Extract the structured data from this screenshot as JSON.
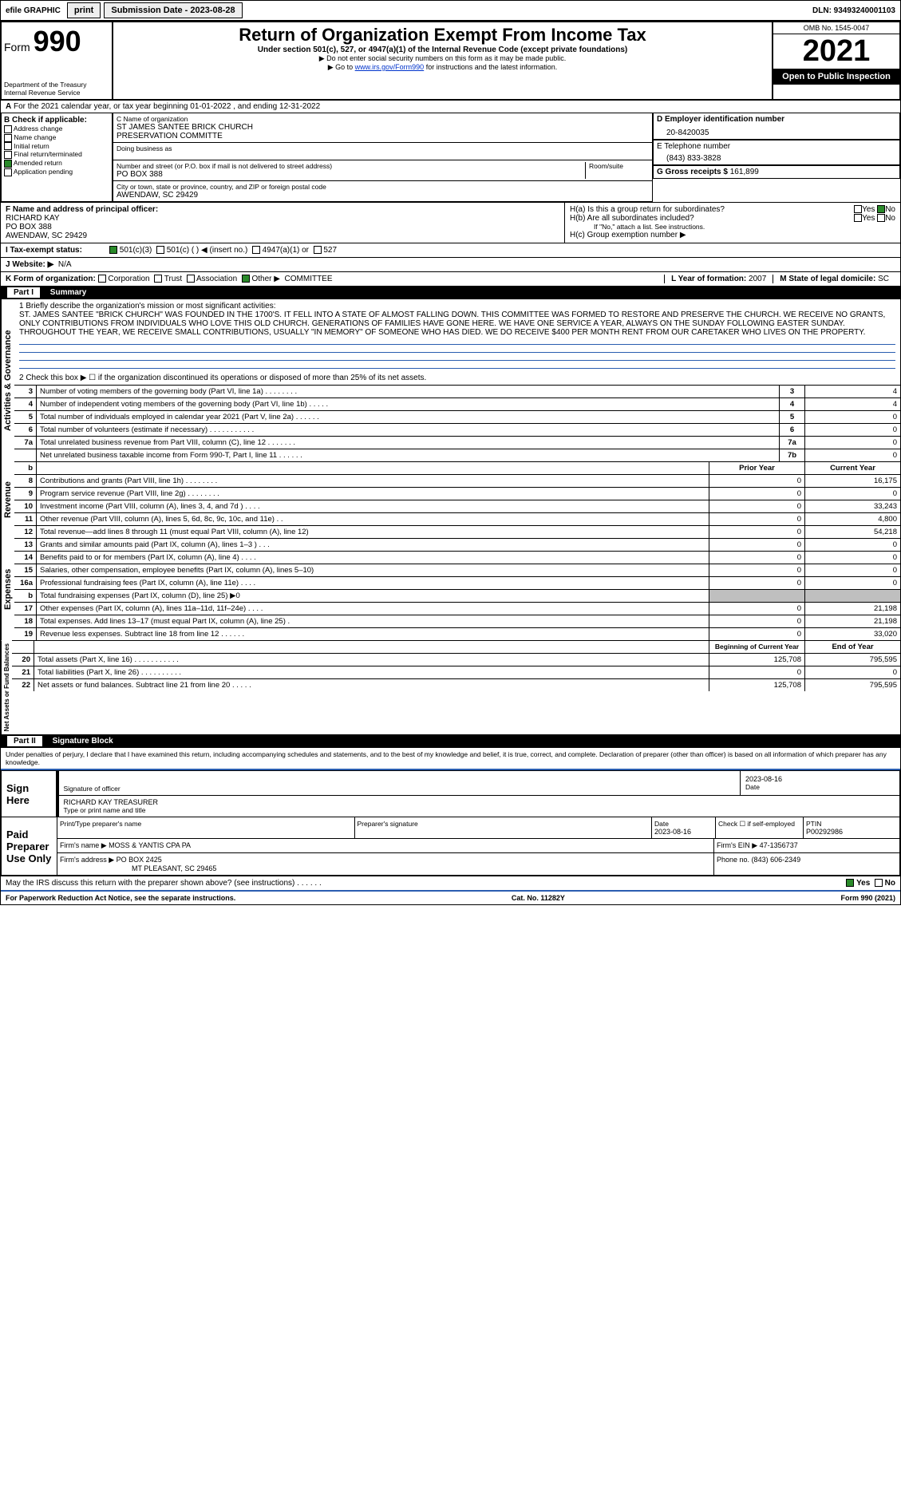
{
  "topbar": {
    "efile": "efile GRAPHIC",
    "print": "print",
    "sub_label": "Submission Date - 2023-08-28",
    "dln": "DLN: 93493240001103"
  },
  "header": {
    "form_word": "Form",
    "form_num": "990",
    "dept": "Department of the Treasury",
    "irs": "Internal Revenue Service",
    "title": "Return of Organization Exempt From Income Tax",
    "subtitle": "Under section 501(c), 527, or 4947(a)(1) of the Internal Revenue Code (except private foundations)",
    "note1": "▶ Do not enter social security numbers on this form as it may be made public.",
    "note2_pre": "▶ Go to ",
    "note2_link": "www.irs.gov/Form990",
    "note2_post": " for instructions and the latest information.",
    "omb": "OMB No. 1545-0047",
    "year": "2021",
    "open": "Open to Public Inspection"
  },
  "lineA": "For the 2021 calendar year, or tax year beginning 01-01-2022   , and ending 12-31-2022",
  "checkB": {
    "label": "B Check if applicable:",
    "items": [
      "Address change",
      "Name change",
      "Initial return",
      "Final return/terminated",
      "Amended return",
      "Application pending"
    ],
    "checked_index": 4
  },
  "org": {
    "c_label": "C Name of organization",
    "name1": "ST JAMES SANTEE BRICK CHURCH",
    "name2": "PRESERVATION COMMITTE",
    "dba_label": "Doing business as",
    "street_label": "Number and street (or P.O. box if mail is not delivered to street address)",
    "room_label": "Room/suite",
    "street": "PO BOX 388",
    "city_label": "City or town, state or province, country, and ZIP or foreign postal code",
    "city": "AWENDAW, SC  29429"
  },
  "right": {
    "d_label": "D Employer identification number",
    "ein": "20-8420035",
    "e_label": "E Telephone number",
    "phone": "(843) 833-3828",
    "g_label": "G Gross receipts $",
    "gross": "161,899"
  },
  "f": {
    "label": "F  Name and address of principal officer:",
    "name": "RICHARD KAY",
    "addr1": "PO BOX 388",
    "addr2": "AWENDAW, SC  29429"
  },
  "h": {
    "a": "H(a)  Is this a group return for subordinates?",
    "a_yes": "Yes",
    "a_no": "No",
    "b": "H(b)  Are all subordinates included?",
    "b_yes": "Yes",
    "b_no": "No",
    "b_note": "If \"No,\" attach a list. See instructions.",
    "c": "H(c)  Group exemption number ▶"
  },
  "i": {
    "label": "I   Tax-exempt status:",
    "o1": "501(c)(3)",
    "o2": "501(c) (  )  ◀ (insert no.)",
    "o3": "4947(a)(1) or",
    "o4": "527"
  },
  "j": {
    "label": "J   Website: ▶",
    "val": "N/A"
  },
  "k": {
    "label": "K Form of organization:",
    "opts": [
      "Corporation",
      "Trust",
      "Association",
      "Other ▶"
    ],
    "other_val": "COMMITTEE"
  },
  "l": {
    "label": "L Year of formation:",
    "val": "2007"
  },
  "m": {
    "label": "M State of legal domicile:",
    "val": "SC"
  },
  "part1": {
    "bar": "Part I",
    "title": "Summary"
  },
  "summary": {
    "q1_label": "1   Briefly describe the organization's mission or most significant activities:",
    "q1_text": "ST. JAMES SANTEE \"BRICK CHURCH\" WAS FOUNDED IN THE 1700'S. IT FELL INTO A STATE OF ALMOST FALLING DOWN. THIS COMMITTEE WAS FORMED TO RESTORE AND PRESERVE THE CHURCH. WE RECEIVE NO GRANTS, ONLY CONTRIBUTIONS FROM INDIVIDUALS WHO LOVE THIS OLD CHURCH. GENERATIONS OF FAMILIES HAVE GONE HERE. WE HAVE ONE SERVICE A YEAR, ALWAYS ON THE SUNDAY FOLLOWING EASTER SUNDAY. THROUGHOUT THE YEAR, WE RECEIVE SMALL CONTRIBUTIONS, USUALLY \"IN MEMORY\" OF SOMEONE WHO HAS DIED. WE DO RECEIVE $400 PER MONTH RENT FROM OUR CARETAKER WHO LIVES ON THE PROPERTY.",
    "q2": "2   Check this box ▶ ☐ if the organization discontinued its operations or disposed of more than 25% of its net assets.",
    "rows_gov": [
      {
        "n": "3",
        "d": "Number of voting members of the governing body (Part VI, line 1a)   .    .    .    .    .    .    .    .",
        "t": "3",
        "v": "4"
      },
      {
        "n": "4",
        "d": "Number of independent voting members of the governing body (Part VI, line 1b)   .    .    .    .    .",
        "t": "4",
        "v": "4"
      },
      {
        "n": "5",
        "d": "Total number of individuals employed in calendar year 2021 (Part V, line 2a)   .    .    .    .    .    .",
        "t": "5",
        "v": "0"
      },
      {
        "n": "6",
        "d": "Total number of volunteers (estimate if necessary)   .    .    .    .    .    .    .    .    .    .    .",
        "t": "6",
        "v": "0"
      },
      {
        "n": "7a",
        "d": "Total unrelated business revenue from Part VIII, column (C), line 12   .    .    .    .    .    .    .",
        "t": "7a",
        "v": "0"
      },
      {
        "n": "",
        "d": "Net unrelated business taxable income from Form 990-T, Part I, line 11   .    .    .    .    .    .",
        "t": "7b",
        "v": "0"
      }
    ],
    "col_prior": "Prior Year",
    "col_current": "Current Year",
    "rows_rev": [
      {
        "n": "8",
        "d": "Contributions and grants (Part VIII, line 1h)   .    .    .    .    .    .    .    .",
        "p": "0",
        "c": "16,175"
      },
      {
        "n": "9",
        "d": "Program service revenue (Part VIII, line 2g)   .    .    .    .    .    .    .    .",
        "p": "0",
        "c": "0"
      },
      {
        "n": "10",
        "d": "Investment income (Part VIII, column (A), lines 3, 4, and 7d )   .    .    .    .",
        "p": "0",
        "c": "33,243"
      },
      {
        "n": "11",
        "d": "Other revenue (Part VIII, column (A), lines 5, 6d, 8c, 9c, 10c, and 11e)   .    .",
        "p": "0",
        "c": "4,800"
      },
      {
        "n": "12",
        "d": "Total revenue—add lines 8 through 11 (must equal Part VIII, column (A), line 12)",
        "p": "0",
        "c": "54,218"
      }
    ],
    "rows_exp": [
      {
        "n": "13",
        "d": "Grants and similar amounts paid (Part IX, column (A), lines 1–3 )   .    .    .",
        "p": "0",
        "c": "0"
      },
      {
        "n": "14",
        "d": "Benefits paid to or for members (Part IX, column (A), line 4)   .    .    .    .",
        "p": "0",
        "c": "0"
      },
      {
        "n": "15",
        "d": "Salaries, other compensation, employee benefits (Part IX, column (A), lines 5–10)",
        "p": "0",
        "c": "0"
      },
      {
        "n": "16a",
        "d": "Professional fundraising fees (Part IX, column (A), line 11e)   .    .    .    .",
        "p": "0",
        "c": "0"
      },
      {
        "n": "b",
        "d": "Total fundraising expenses (Part IX, column (D), line 25) ▶0",
        "p": "",
        "c": "",
        "shade": true
      },
      {
        "n": "17",
        "d": "Other expenses (Part IX, column (A), lines 11a–11d, 11f–24e)   .    .    .    .",
        "p": "0",
        "c": "21,198"
      },
      {
        "n": "18",
        "d": "Total expenses. Add lines 13–17 (must equal Part IX, column (A), line 25)   .",
        "p": "0",
        "c": "21,198"
      },
      {
        "n": "19",
        "d": "Revenue less expenses. Subtract line 18 from line 12   .    .    .    .    .    .",
        "p": "0",
        "c": "33,020"
      }
    ],
    "col_begin": "Beginning of Current Year",
    "col_end": "End of Year",
    "rows_net": [
      {
        "n": "20",
        "d": "Total assets (Part X, line 16)   .    .    .    .    .    .    .    .    .    .    .",
        "p": "125,708",
        "c": "795,595"
      },
      {
        "n": "21",
        "d": "Total liabilities (Part X, line 26)   .    .    .    .    .    .    .    .    .    .",
        "p": "0",
        "c": "0"
      },
      {
        "n": "22",
        "d": "Net assets or fund balances. Subtract line 21 from line 20   .    .    .    .    .",
        "p": "125,708",
        "c": "795,595"
      }
    ]
  },
  "part2": {
    "bar": "Part II",
    "title": "Signature Block"
  },
  "sig": {
    "decl": "Under penalties of perjury, I declare that I have examined this return, including accompanying schedules and statements, and to the best of my knowledge and belief, it is true, correct, and complete. Declaration of preparer (other than officer) is based on all information of which preparer has any knowledge.",
    "sign_here": "Sign Here",
    "sig_officer": "Signature of officer",
    "date_label": "Date",
    "date_val": "2023-08-16",
    "name": "RICHARD KAY TREASURER",
    "name_label": "Type or print name and title",
    "paid": "Paid Preparer Use Only",
    "prep_name_label": "Print/Type preparer's name",
    "prep_sig_label": "Preparer's signature",
    "prep_date": "2023-08-16",
    "check_self": "Check ☐ if self-employed",
    "ptin_label": "PTIN",
    "ptin": "P00292986",
    "firm_name_label": "Firm's name    ▶",
    "firm_name": "MOSS & YANTIS CPA PA",
    "firm_ein_label": "Firm's EIN ▶",
    "firm_ein": "47-1356737",
    "firm_addr_label": "Firm's address ▶",
    "firm_addr1": "PO BOX 2425",
    "firm_addr2": "MT PLEASANT, SC  29465",
    "firm_phone_label": "Phone no.",
    "firm_phone": "(843) 606-2349",
    "discuss": "May the IRS discuss this return with the preparer shown above? (see instructions)    .    .    .    .    .    .",
    "yes": "Yes",
    "no": "No"
  },
  "footer": {
    "left": "For Paperwork Reduction Act Notice, see the separate instructions.",
    "mid": "Cat. No. 11282Y",
    "right": "Form 990 (2021)"
  },
  "side_labels": {
    "gov": "Activities & Governance",
    "rev": "Revenue",
    "exp": "Expenses",
    "net": "Net Assets or Fund Balances"
  }
}
